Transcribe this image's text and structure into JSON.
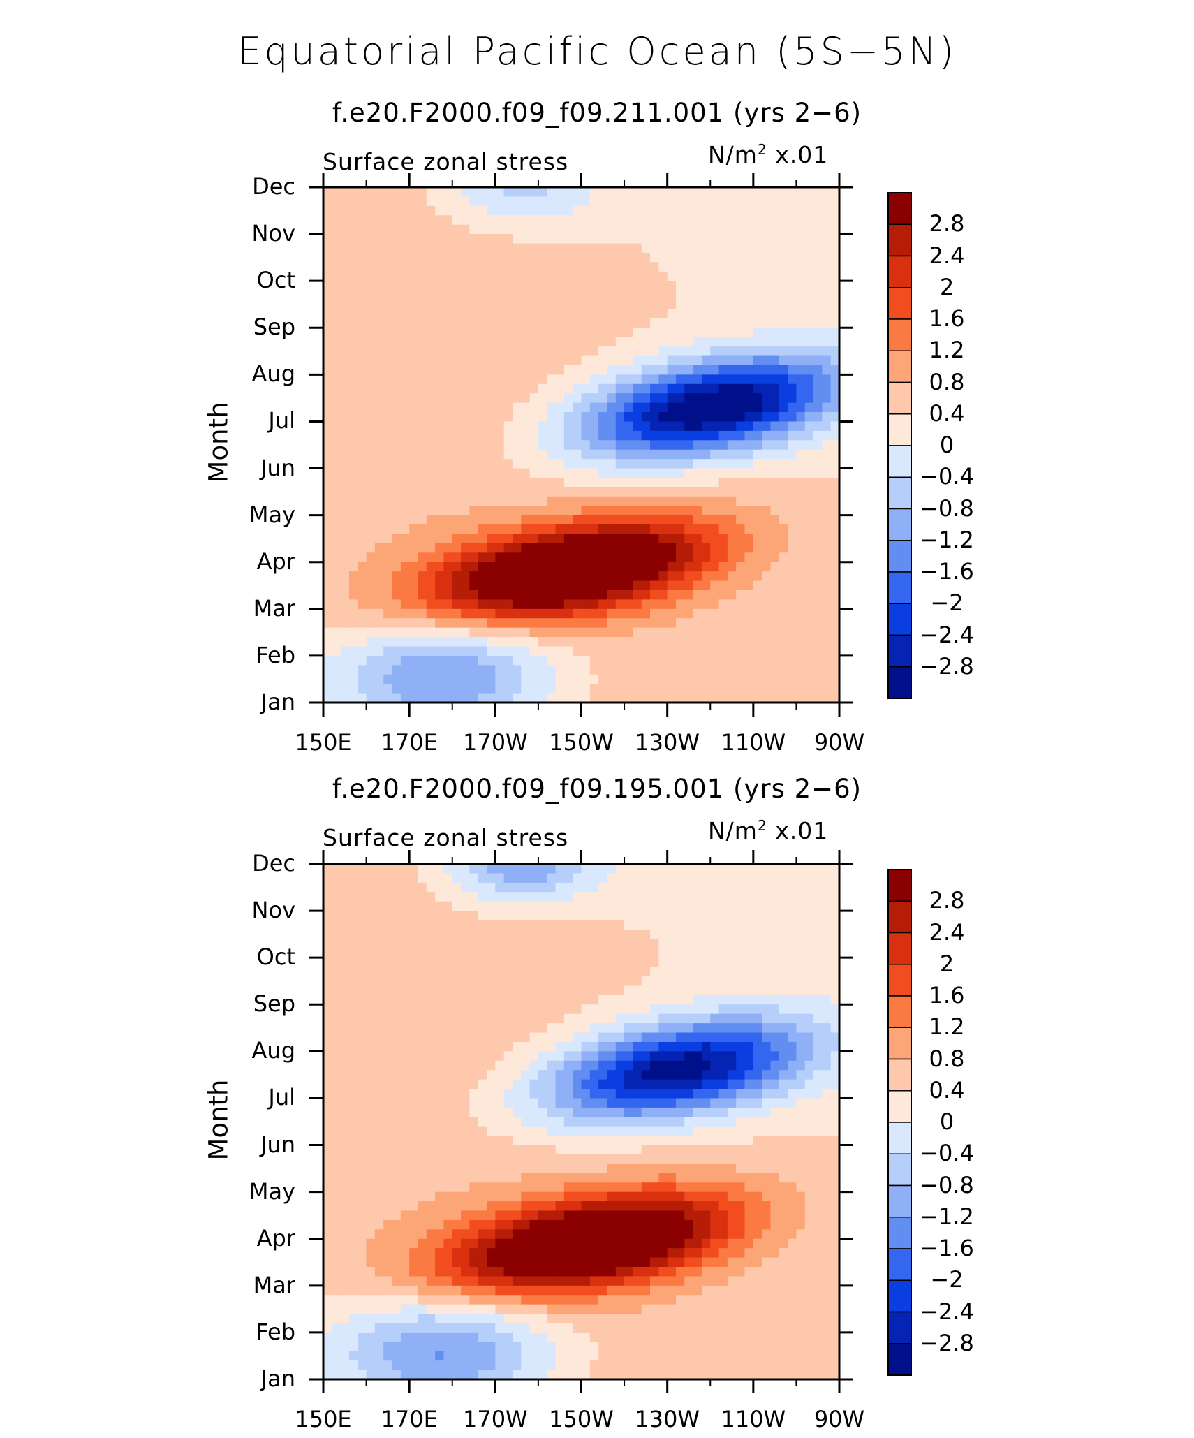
{
  "title": "Equatorial Pacific Ocean (5S−5N)",
  "chart_data": [
    {
      "type": "heatmap",
      "subtitle": "f.e20.F2000.f09_f09.211.001 (yrs 2−6)",
      "variable": "Surface zonal stress",
      "units_base": "N/m",
      "units_exp": "2",
      "units_scale": "x.01",
      "ylabel": "Month",
      "x_ticks": [
        "150E",
        "170E",
        "170W",
        "150W",
        "130W",
        "110W",
        "90W"
      ],
      "y_ticks": [
        "Jan",
        "Feb",
        "Mar",
        "Apr",
        "May",
        "Jun",
        "Jul",
        "Aug",
        "Sep",
        "Oct",
        "Nov",
        "Dec"
      ],
      "xlim": [
        150,
        270
      ],
      "ylim": [
        1,
        12
      ],
      "levels": [
        2.8,
        2.4,
        2,
        1.6,
        1.2,
        0.8,
        0.4,
        0,
        -0.4,
        -0.8,
        -1.2,
        -1.6,
        -2,
        -2.4,
        -2.8
      ],
      "positive_core": {
        "month": 3.8,
        "lon": 207,
        "max": 3.0
      },
      "negative_core": {
        "month": 7.3,
        "lon": 240,
        "min": -2.9
      }
    },
    {
      "type": "heatmap",
      "subtitle": "f.e20.F2000.f09_f09.195.001 (yrs 2−6)",
      "variable": "Surface zonal stress",
      "units_base": "N/m",
      "units_exp": "2",
      "units_scale": "x.01",
      "ylabel": "Month",
      "x_ticks": [
        "150E",
        "170E",
        "170W",
        "150W",
        "130W",
        "110W",
        "90W"
      ],
      "y_ticks": [
        "Jan",
        "Feb",
        "Mar",
        "Apr",
        "May",
        "Jun",
        "Jul",
        "Aug",
        "Sep",
        "Oct",
        "Nov",
        "Dec"
      ],
      "xlim": [
        150,
        270
      ],
      "ylim": [
        1,
        12
      ],
      "levels": [
        2.8,
        2.4,
        2,
        1.6,
        1.2,
        0.8,
        0.4,
        0,
        -0.4,
        -0.8,
        -1.2,
        -1.6,
        -2,
        -2.4,
        -2.8
      ],
      "positive_core": {
        "month": 3.9,
        "lon": 212,
        "max": 3.0
      },
      "negative_core": {
        "month": 7.6,
        "lon": 232,
        "min": -2.7
      }
    }
  ],
  "colorbar": {
    "colors": [
      "#8b0000",
      "#b51d06",
      "#d9310f",
      "#f24d1f",
      "#fb7a44",
      "#fca677",
      "#fec8ad",
      "#fee8d9",
      "#d9e8fc",
      "#b6cefa",
      "#8fb0f7",
      "#628ef2",
      "#3466f0",
      "#0a3ee0",
      "#0524b4",
      "#00108a"
    ]
  }
}
